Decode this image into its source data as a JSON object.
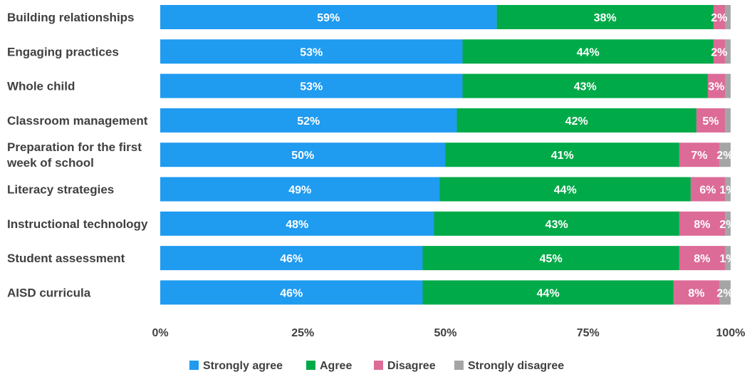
{
  "chart_data": {
    "type": "bar",
    "orientation": "horizontal",
    "stacked": true,
    "categories": [
      [
        "Building relationships"
      ],
      [
        "Engaging practices"
      ],
      [
        "Whole child"
      ],
      [
        "Classroom management"
      ],
      [
        "Preparation for the first",
        "week of school"
      ],
      [
        "Literacy strategies"
      ],
      [
        "Instructional technology"
      ],
      [
        "Student assessment"
      ],
      [
        "AISD curricula"
      ]
    ],
    "series": [
      {
        "name": "Strongly agree",
        "color": "#1f9bf0",
        "values": [
          59,
          53,
          53,
          52,
          50,
          49,
          48,
          46,
          46
        ]
      },
      {
        "name": "Agree",
        "color": "#00aa48",
        "values": [
          38,
          44,
          43,
          42,
          41,
          44,
          43,
          45,
          44
        ]
      },
      {
        "name": "Disagree",
        "color": "#dc6b97",
        "values": [
          2,
          2,
          3,
          5,
          7,
          6,
          8,
          8,
          8
        ]
      },
      {
        "name": "Strongly disagree",
        "color": "#a5a5a5",
        "values": [
          1,
          1,
          1,
          1,
          2,
          1,
          2,
          1,
          2
        ]
      }
    ],
    "data_labels": [
      [
        "59%",
        "53%",
        "53%",
        "52%",
        "50%",
        "49%",
        "48%",
        "46%",
        "46%"
      ],
      [
        "38%",
        "44%",
        "43%",
        "42%",
        "41%",
        "44%",
        "43%",
        "45%",
        "44%"
      ],
      [
        "2%",
        "2%",
        "3%",
        "5%",
        "7%",
        "6%",
        "8%",
        "8%",
        "8%"
      ],
      [
        "",
        "",
        "",
        "",
        "2%",
        "1%",
        "2%",
        "1%",
        "2%"
      ]
    ],
    "xlim": [
      0,
      100
    ],
    "ticks": [
      "0%",
      "25%",
      "50%",
      "75%",
      "100%"
    ],
    "grid": false,
    "legend_position": "bottom"
  }
}
